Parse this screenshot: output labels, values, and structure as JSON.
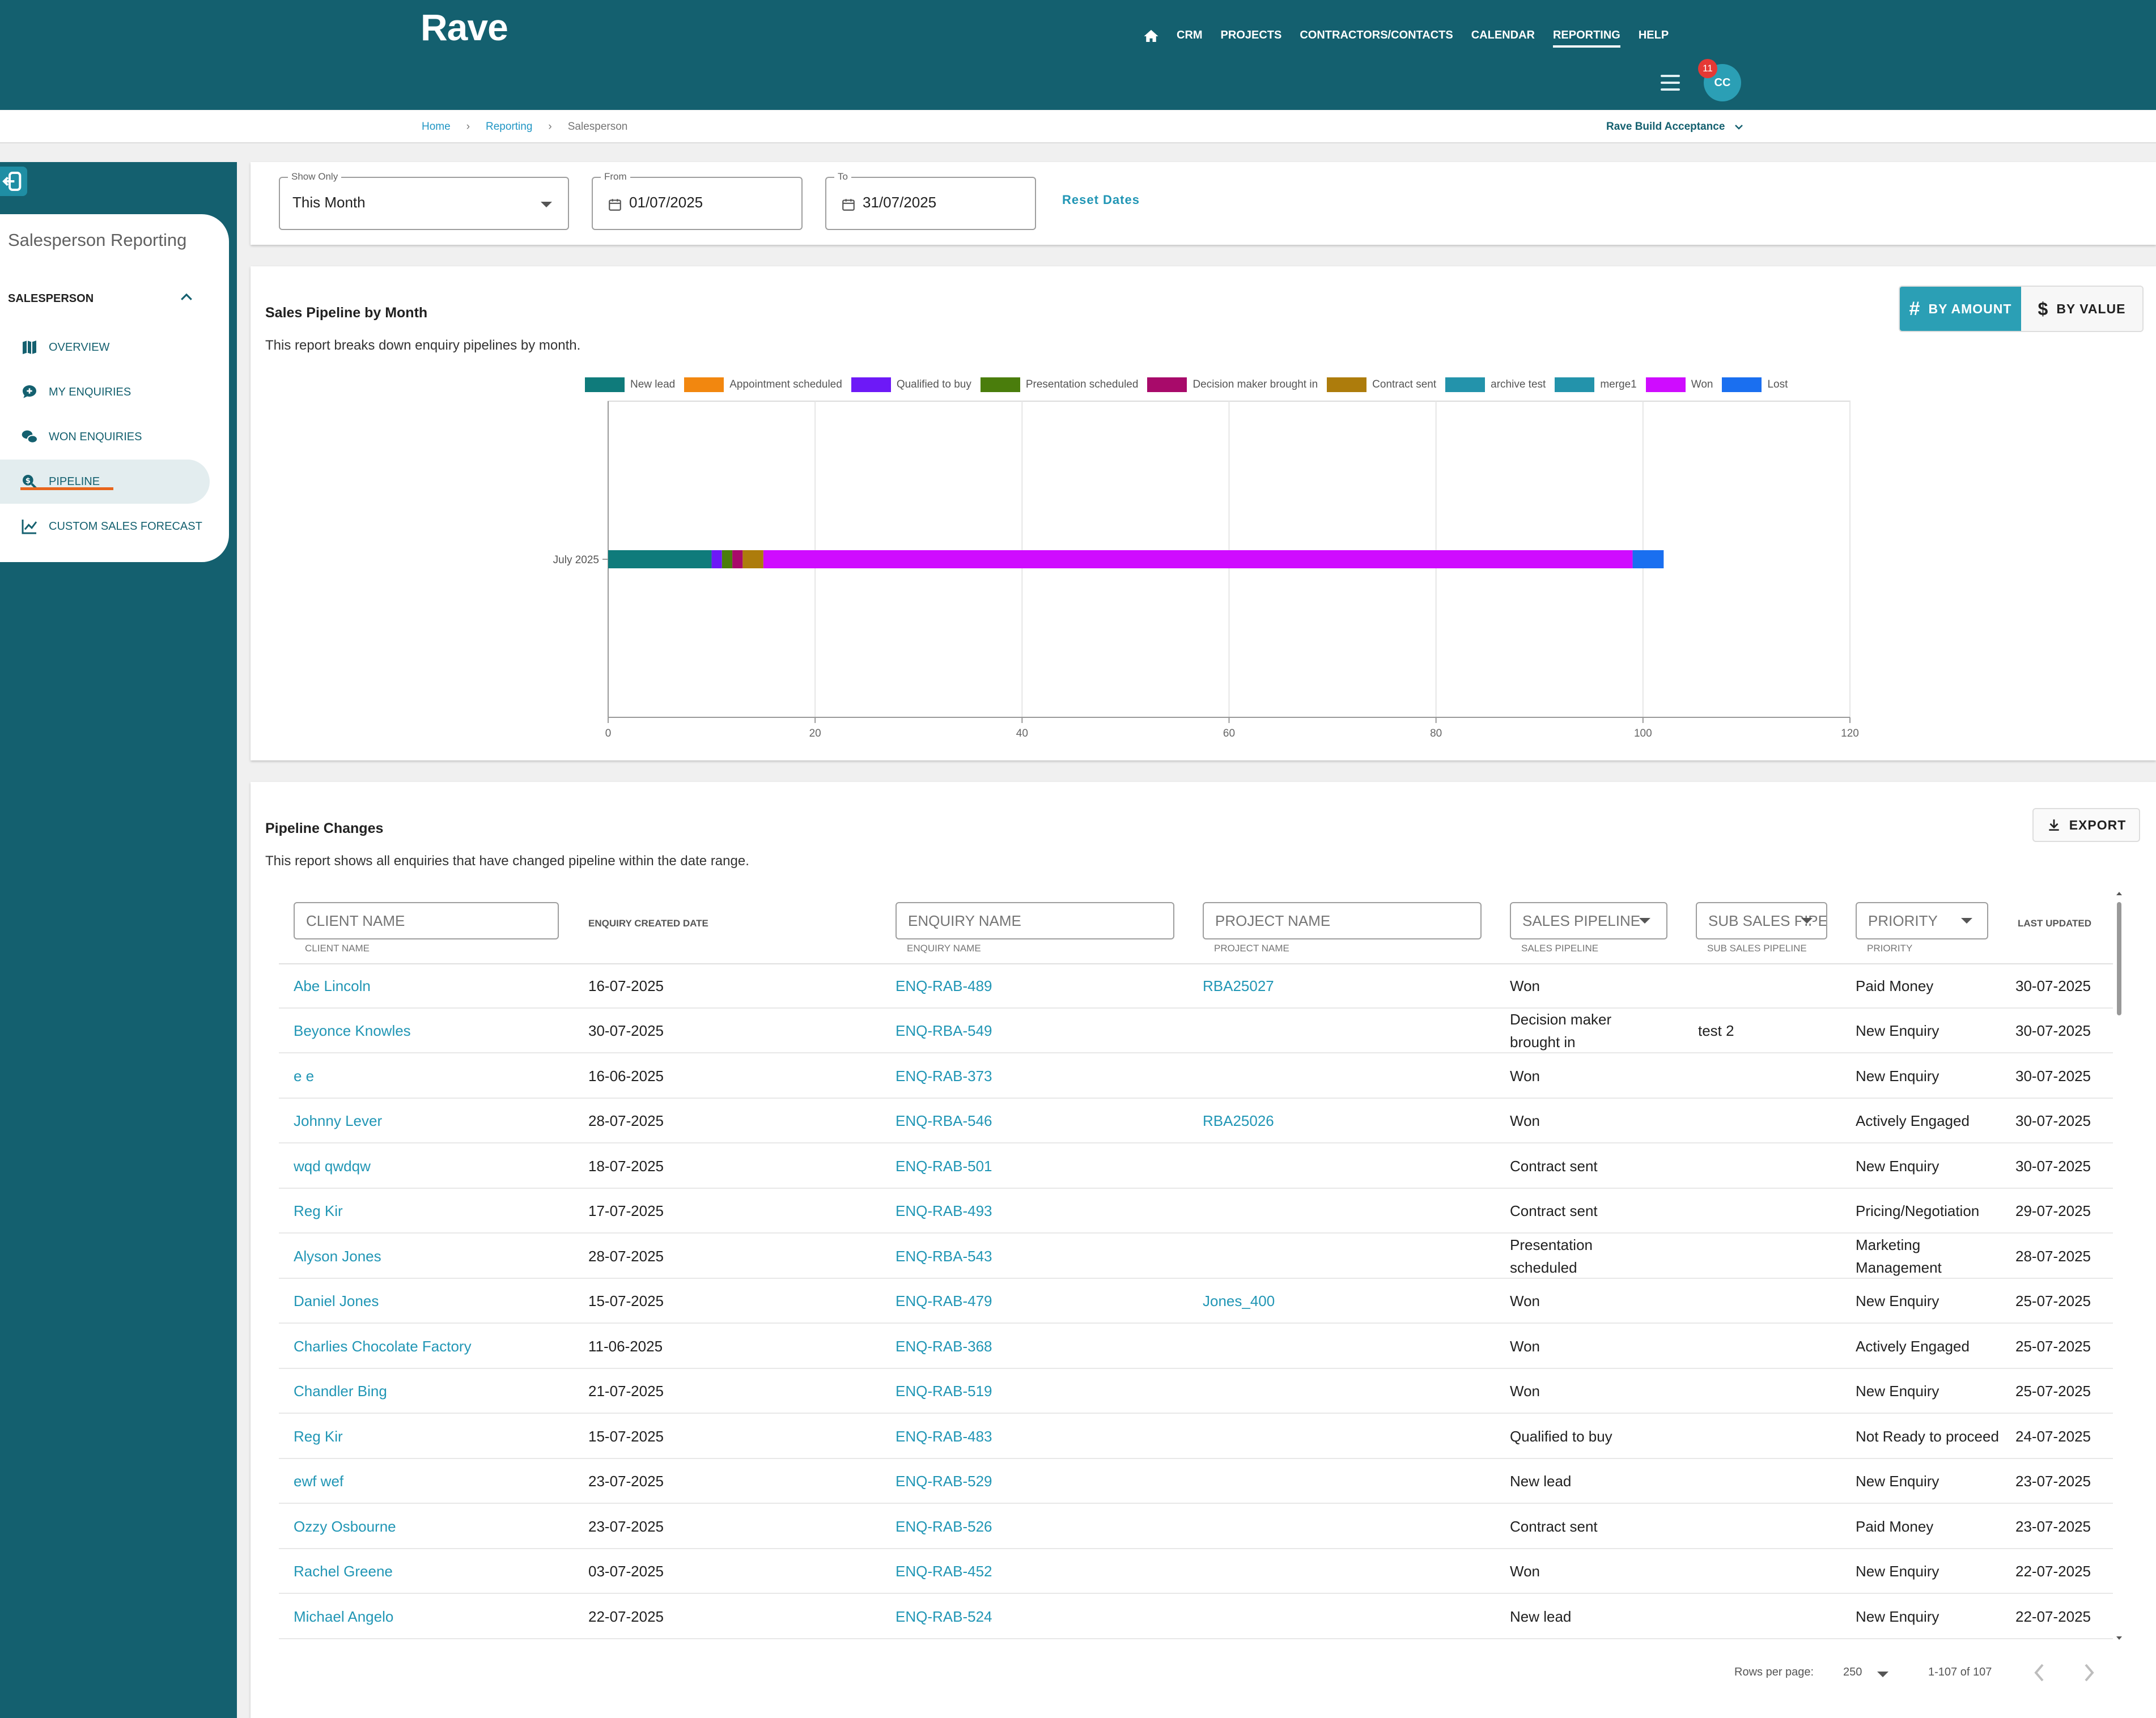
{
  "app": {
    "logo": "Rave",
    "notification_count": "11",
    "avatar_initials": "CC"
  },
  "nav": [
    {
      "label": "CRM"
    },
    {
      "label": "PROJECTS"
    },
    {
      "label": "CONTRACTORS/CONTACTS"
    },
    {
      "label": "CALENDAR"
    },
    {
      "label": "REPORTING"
    },
    {
      "label": "HELP"
    }
  ],
  "breadcrumb": {
    "home": "Home",
    "reporting": "Reporting",
    "current": "Salesperson"
  },
  "org_selector": "Rave Build Acceptance",
  "sidebar": {
    "title": "Salesperson Reporting",
    "group": "SALESPERSON",
    "items": [
      {
        "label": "OVERVIEW",
        "icon": "map-icon"
      },
      {
        "label": "MY ENQUIRIES",
        "icon": "chat-plus-icon"
      },
      {
        "label": "WON ENQUIRIES",
        "icon": "chat-bubbles-icon"
      },
      {
        "label": "PIPELINE",
        "icon": "search-dollar-icon"
      },
      {
        "label": "CUSTOM SALES FORECAST",
        "icon": "line-chart-icon"
      }
    ]
  },
  "filters": {
    "show_only": {
      "label": "Show Only",
      "value": "This Month"
    },
    "from": {
      "label": "From",
      "value": "01/07/2025"
    },
    "to": {
      "label": "To",
      "value": "31/07/2025"
    },
    "reset": "Reset Dates"
  },
  "pipeline_chart": {
    "title": "Sales Pipeline by Month",
    "description": "This report breaks down enquiry pipelines by month.",
    "toggle": {
      "by_amount": "BY AMOUNT",
      "by_value": "BY VALUE"
    }
  },
  "chart_data": {
    "type": "bar",
    "orientation": "horizontal",
    "stacked": true,
    "title": "",
    "categories": [
      "July 2025"
    ],
    "series": [
      {
        "name": "New lead",
        "color": "#0f7b7b",
        "values": [
          10
        ]
      },
      {
        "name": "Appointment scheduled",
        "color": "#f2870f",
        "values": [
          0
        ]
      },
      {
        "name": "Qualified to buy",
        "color": "#6d19f7",
        "values": [
          1
        ]
      },
      {
        "name": "Presentation scheduled",
        "color": "#4a7d0c",
        "values": [
          1
        ]
      },
      {
        "name": "Decision maker brought in",
        "color": "#a80a6a",
        "values": [
          1
        ]
      },
      {
        "name": "Contract sent",
        "color": "#ad7c0c",
        "values": [
          2
        ]
      },
      {
        "name": "archive test",
        "color": "#2393ab",
        "values": [
          0
        ]
      },
      {
        "name": "merge1",
        "color": "#2393ab",
        "values": [
          0
        ]
      },
      {
        "name": "Won",
        "color": "#cf0cff",
        "values": [
          84
        ]
      },
      {
        "name": "Lost",
        "color": "#1a6ff0",
        "values": [
          3
        ]
      }
    ],
    "xlim": [
      0,
      120
    ],
    "xticks": [
      0,
      20,
      40,
      60,
      80,
      100,
      120
    ],
    "legend": "top",
    "grid": true
  },
  "changes": {
    "title": "Pipeline Changes",
    "description": "This report shows all enquiries that have changed pipeline within the date range.",
    "export": "EXPORT",
    "filters": {
      "client": "CLIENT NAME",
      "enquiry": "ENQUIRY NAME",
      "project": "PROJECT NAME",
      "pipeline": "SALES PIPELINE",
      "sub_pipeline": "SUB SALES PIPELINE",
      "priority": "PRIORITY"
    },
    "columns": {
      "client": "CLIENT NAME",
      "created": "ENQUIRY CREATED DATE",
      "enquiry": "ENQUIRY NAME",
      "project": "PROJECT NAME",
      "pipeline": "SALES PIPELINE",
      "sub_pipeline": "SUB SALES PIPELINE",
      "priority": "PRIORITY",
      "updated": "LAST UPDATED"
    },
    "rows": [
      {
        "client": "Abe Lincoln",
        "created": "16-07-2025",
        "enquiry": "ENQ-RAB-489",
        "project": "RBA25027",
        "pipeline": "Won",
        "sub": "",
        "priority": "Paid Money",
        "updated": "30-07-2025"
      },
      {
        "client": "Beyonce Knowles",
        "created": "30-07-2025",
        "enquiry": "ENQ-RBA-549",
        "project": "",
        "pipeline": "Decision maker brought in",
        "sub": "test 2",
        "priority": "New Enquiry",
        "updated": "30-07-2025"
      },
      {
        "client": "e e",
        "created": "16-06-2025",
        "enquiry": "ENQ-RAB-373",
        "project": "",
        "pipeline": "Won",
        "sub": "",
        "priority": "New Enquiry",
        "updated": "30-07-2025"
      },
      {
        "client": "Johnny Lever",
        "created": "28-07-2025",
        "enquiry": "ENQ-RBA-546",
        "project": "RBA25026",
        "pipeline": "Won",
        "sub": "",
        "priority": "Actively Engaged",
        "updated": "30-07-2025"
      },
      {
        "client": "wqd qwdqw",
        "created": "18-07-2025",
        "enquiry": "ENQ-RAB-501",
        "project": "",
        "pipeline": "Contract sent",
        "sub": "",
        "priority": "New Enquiry",
        "updated": "30-07-2025"
      },
      {
        "client": "Reg Kir",
        "created": "17-07-2025",
        "enquiry": "ENQ-RAB-493",
        "project": "",
        "pipeline": "Contract sent",
        "sub": "",
        "priority": "Pricing/Negotiation",
        "updated": "29-07-2025"
      },
      {
        "client": "Alyson Jones",
        "created": "28-07-2025",
        "enquiry": "ENQ-RBA-543",
        "project": "",
        "pipeline": "Presentation scheduled",
        "sub": "",
        "priority": "Marketing Management",
        "updated": "28-07-2025"
      },
      {
        "client": "Daniel Jones",
        "created": "15-07-2025",
        "enquiry": "ENQ-RAB-479",
        "project": "Jones_400",
        "pipeline": "Won",
        "sub": "",
        "priority": "New Enquiry",
        "updated": "25-07-2025"
      },
      {
        "client": "Charlies Chocolate Factory",
        "created": "11-06-2025",
        "enquiry": "ENQ-RAB-368",
        "project": "",
        "pipeline": "Won",
        "sub": "",
        "priority": "Actively Engaged",
        "updated": "25-07-2025"
      },
      {
        "client": "Chandler Bing",
        "created": "21-07-2025",
        "enquiry": "ENQ-RAB-519",
        "project": "",
        "pipeline": "Won",
        "sub": "",
        "priority": "New Enquiry",
        "updated": "25-07-2025"
      },
      {
        "client": "Reg Kir",
        "created": "15-07-2025",
        "enquiry": "ENQ-RAB-483",
        "project": "",
        "pipeline": "Qualified to buy",
        "sub": "",
        "priority": "Not Ready to proceed",
        "updated": "24-07-2025"
      },
      {
        "client": "ewf wef",
        "created": "23-07-2025",
        "enquiry": "ENQ-RAB-529",
        "project": "",
        "pipeline": "New lead",
        "sub": "",
        "priority": "New Enquiry",
        "updated": "23-07-2025"
      },
      {
        "client": "Ozzy Osbourne",
        "created": "23-07-2025",
        "enquiry": "ENQ-RAB-526",
        "project": "",
        "pipeline": "Contract sent",
        "sub": "",
        "priority": "Paid Money",
        "updated": "23-07-2025"
      },
      {
        "client": "Rachel Greene",
        "created": "03-07-2025",
        "enquiry": "ENQ-RAB-452",
        "project": "",
        "pipeline": "Won",
        "sub": "",
        "priority": "New Enquiry",
        "updated": "22-07-2025"
      },
      {
        "client": "Michael Angelo",
        "created": "22-07-2025",
        "enquiry": "ENQ-RAB-524",
        "project": "",
        "pipeline": "New lead",
        "sub": "",
        "priority": "New Enquiry",
        "updated": "22-07-2025"
      }
    ],
    "pagination": {
      "rows_per_page_label": "Rows per page:",
      "rows_per_page": "250",
      "range": "1-107 of 107"
    }
  }
}
